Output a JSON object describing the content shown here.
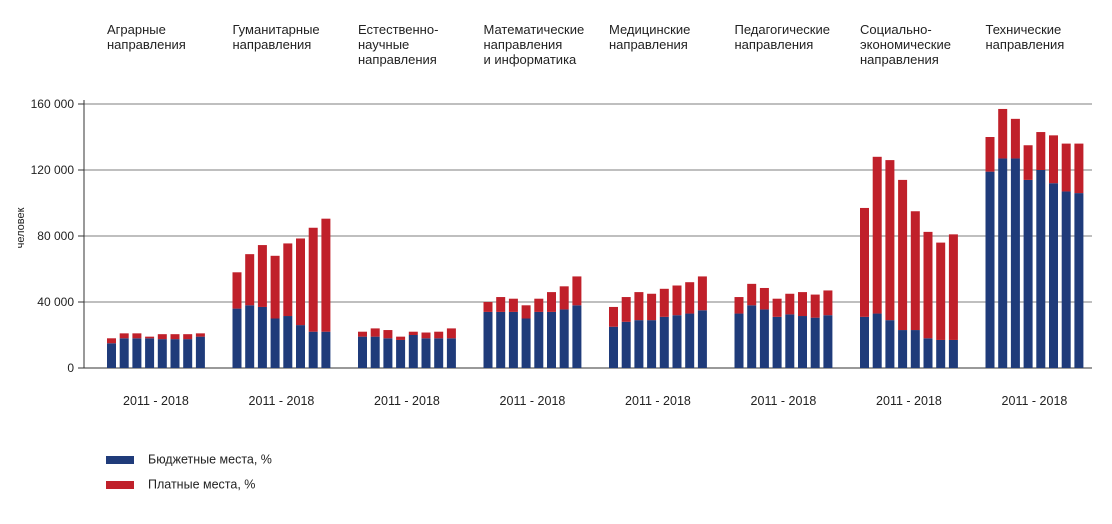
{
  "chart_data": {
    "type": "bar",
    "stacked": true,
    "ylabel": "человек",
    "ylim": [
      0,
      160000
    ],
    "yticks": [
      0,
      40000,
      80000,
      120000,
      160000
    ],
    "ytick_labels": [
      "0",
      "40 000",
      "80 000",
      "120 000",
      "160 000"
    ],
    "grid": true,
    "legend_placement": "bottom-left",
    "colors": {
      "budget": "#1f3b7a",
      "paid": "#c0202a"
    },
    "series": [
      {
        "name": "Бюджетные места, %",
        "key": "budget"
      },
      {
        "name": "Платные места, %",
        "key": "paid"
      }
    ],
    "groups": [
      {
        "title": [
          "Аграрные",
          "направления"
        ],
        "xlabel": "2011 - 2018",
        "budget": [
          15000,
          18000,
          18000,
          18000,
          17500,
          17500,
          17500,
          19000
        ],
        "paid": [
          3000,
          3000,
          3000,
          1000,
          3000,
          3000,
          3000,
          2000
        ]
      },
      {
        "title": [
          "Гуманитарные",
          "направления"
        ],
        "xlabel": "2011 - 2018",
        "budget": [
          36000,
          38000,
          37000,
          30000,
          31500,
          26000,
          22000,
          22000
        ],
        "paid": [
          22000,
          31000,
          37500,
          38000,
          44000,
          52500,
          63000,
          68500
        ]
      },
      {
        "title": [
          "Естественно-",
          "научные",
          "направления"
        ],
        "xlabel": "2011 - 2018",
        "budget": [
          19000,
          19000,
          18000,
          17000,
          20000,
          18000,
          18000,
          18000
        ],
        "paid": [
          3000,
          5000,
          5000,
          2000,
          2000,
          3500,
          4000,
          6000
        ]
      },
      {
        "title": [
          "Математические",
          "направления",
          "и информатика"
        ],
        "xlabel": "2011 - 2018",
        "budget": [
          34000,
          34000,
          34000,
          30000,
          34000,
          34000,
          35500,
          38000
        ],
        "paid": [
          6000,
          9000,
          8000,
          8000,
          8000,
          12000,
          14000,
          17500
        ]
      },
      {
        "title": [
          "Медицинские",
          "направления"
        ],
        "xlabel": "2011 - 2018",
        "budget": [
          25000,
          28000,
          29000,
          29000,
          31000,
          32000,
          33000,
          35000
        ],
        "paid": [
          12000,
          15000,
          17000,
          16000,
          17000,
          18000,
          19000,
          20500
        ]
      },
      {
        "title": [
          "Педагогические",
          "направления"
        ],
        "xlabel": "2011 - 2018",
        "budget": [
          33000,
          38000,
          35500,
          31000,
          32500,
          31500,
          30500,
          32000
        ],
        "paid": [
          10000,
          13000,
          13000,
          11000,
          12500,
          14500,
          14000,
          15000
        ]
      },
      {
        "title": [
          "Социально-",
          "экономические",
          "направления"
        ],
        "xlabel": "2011 - 2018",
        "budget": [
          31000,
          33000,
          29000,
          23000,
          23000,
          18000,
          17000,
          17000
        ],
        "paid": [
          66000,
          95000,
          97000,
          91000,
          72000,
          64500,
          59000,
          64000
        ]
      },
      {
        "title": [
          "Технические",
          "направления"
        ],
        "xlabel": "2011 - 2018",
        "budget": [
          119000,
          127000,
          127000,
          114000,
          120000,
          112000,
          107000,
          106000
        ],
        "paid": [
          21000,
          30000,
          24000,
          21000,
          23000,
          29000,
          29000,
          30000
        ]
      }
    ]
  }
}
